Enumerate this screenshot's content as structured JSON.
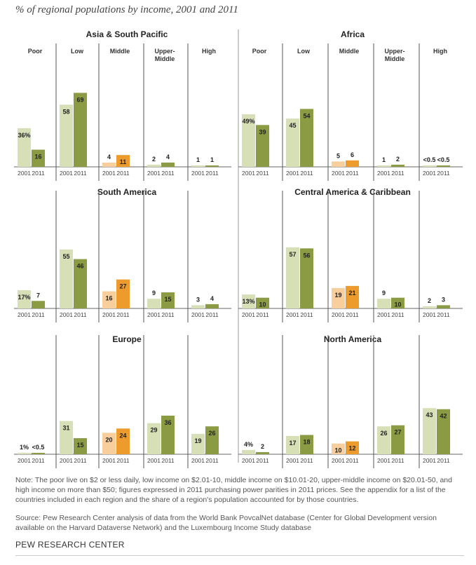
{
  "title": "% of regional populations by income, 2001 and 2011",
  "note": "Note: The poor live on $2 or less daily, low income on $2.01-10, middle income on $10.01-20, upper-middle income on $20.01-50, and high income on more than $50; figures expressed in 2011 purchasing power parities in 2011 prices. See the appendix for a list of the countries included in each region and the share of a region's population accounted for by those countries.",
  "source": "Source: Pew Research Center analysis of data from the World Bank PovcalNet database (Center for Global Development version available on the Harvard Dataverse Network) and the Luxembourg Income Study database",
  "footer": "PEW RESEARCH CENTER",
  "colors": {
    "poor_low_upper_high_2001": "#d7dfb6",
    "poor_low_upper_high_2011": "#8b9b44",
    "middle_2001": "#f8cf9c",
    "middle_2011": "#ee9b2e"
  },
  "chart_data": [
    {
      "type": "bar",
      "title": "Asia & South Pacific",
      "categories": [
        "Poor",
        "Low",
        "Middle",
        "Upper-Middle",
        "High"
      ],
      "x": [
        "2001",
        "2011"
      ],
      "series": [
        {
          "name": "2001",
          "values": [
            36,
            58,
            4,
            2,
            1
          ],
          "labels": [
            "36%",
            "58",
            "4",
            "2",
            "1"
          ]
        },
        {
          "name": "2011",
          "values": [
            16,
            69,
            11,
            4,
            1
          ],
          "labels": [
            "16",
            "69",
            "11",
            "4",
            "1"
          ]
        }
      ]
    },
    {
      "type": "bar",
      "title": "Africa",
      "categories": [
        "Poor",
        "Low",
        "Middle",
        "Upper-Middle",
        "High"
      ],
      "x": [
        "2001",
        "2011"
      ],
      "series": [
        {
          "name": "2001",
          "values": [
            49,
            45,
            5,
            1,
            0.3
          ],
          "labels": [
            "49%",
            "45",
            "5",
            "1",
            "<0.5"
          ]
        },
        {
          "name": "2011",
          "values": [
            39,
            54,
            6,
            2,
            0.3
          ],
          "labels": [
            "39",
            "54",
            "6",
            "2",
            "<0.5"
          ]
        }
      ]
    },
    {
      "type": "bar",
      "title": "South America",
      "categories": [
        "",
        "",
        "",
        "",
        ""
      ],
      "x": [
        "2001",
        "2011"
      ],
      "series": [
        {
          "name": "2001",
          "values": [
            17,
            55,
            16,
            9,
            3
          ],
          "labels": [
            "17%",
            "55",
            "16",
            "9",
            "3"
          ]
        },
        {
          "name": "2011",
          "values": [
            7,
            46,
            27,
            15,
            4
          ],
          "labels": [
            "7",
            "46",
            "27",
            "15",
            "4"
          ]
        }
      ]
    },
    {
      "type": "bar",
      "title": "Central America & Caribbean",
      "categories": [
        "",
        "",
        "",
        "",
        ""
      ],
      "x": [
        "2001",
        "2011"
      ],
      "series": [
        {
          "name": "2001",
          "values": [
            13,
            57,
            19,
            9,
            2
          ],
          "labels": [
            "13%",
            "57",
            "19",
            "9",
            "2"
          ]
        },
        {
          "name": "2011",
          "values": [
            10,
            56,
            21,
            10,
            3
          ],
          "labels": [
            "10",
            "56",
            "21",
            "10",
            "3"
          ]
        }
      ]
    },
    {
      "type": "bar",
      "title": "Europe",
      "categories": [
        "",
        "",
        "",
        "",
        ""
      ],
      "x": [
        "2001",
        "2011"
      ],
      "series": [
        {
          "name": "2001",
          "values": [
            1,
            31,
            20,
            29,
            19
          ],
          "labels": [
            "1%",
            "31",
            "20",
            "29",
            "19"
          ]
        },
        {
          "name": "2011",
          "values": [
            0.3,
            15,
            24,
            36,
            26
          ],
          "labels": [
            "<0.5",
            "15",
            "24",
            "36",
            "26"
          ]
        }
      ]
    },
    {
      "type": "bar",
      "title": "North America",
      "categories": [
        "",
        "",
        "",
        "",
        ""
      ],
      "x": [
        "2001",
        "2011"
      ],
      "series": [
        {
          "name": "2001",
          "values": [
            4,
            17,
            10,
            26,
            43
          ],
          "labels": [
            "4%",
            "17",
            "10",
            "26",
            "43"
          ]
        },
        {
          "name": "2011",
          "values": [
            2,
            18,
            12,
            27,
            42
          ],
          "labels": [
            "2",
            "18",
            "12",
            "27",
            "42"
          ]
        }
      ]
    }
  ]
}
